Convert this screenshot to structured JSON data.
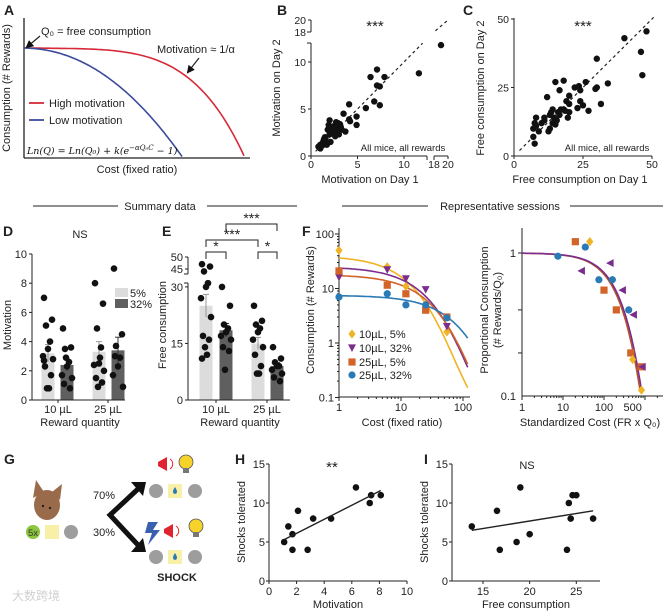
{
  "sections": {
    "summary": "Summary data",
    "representative": "Representative sessions"
  },
  "watermark": "大数跨境",
  "colors": {
    "high": "#d62a3a",
    "low": "#3d4b9c",
    "bar5": "#dcdcdc",
    "bar32": "#5f5f5f",
    "yellow": "#f0b323",
    "purple": "#7b2d8e",
    "orange": "#d2642a",
    "blue": "#2a7ab5",
    "green": "#8cc63f",
    "pad": "#f7f0a6",
    "grey": "#9d9d9d",
    "mouse": "#9a6b4b"
  },
  "chart_data": [
    {
      "panel": "A",
      "type": "line",
      "xlabel": "Cost (fixed ratio)",
      "ylabel": "Consumption (# Rewards)",
      "annotations": {
        "q0": "Q₀ = free consumption",
        "motivation": "Motivation ≈ 1/α"
      },
      "equation": {
        "main": "Ln(Q) = Ln(Q₀) + k(e",
        "sup": "−αQ₀C",
        "end": " − 1)"
      },
      "series": [
        {
          "name": "High motivation",
          "color": "#d62a3a"
        },
        {
          "name": "Low motivation",
          "color": "#3d4b9c"
        }
      ]
    },
    {
      "panel": "B",
      "type": "scatter",
      "xlabel": "Motivation on Day 1",
      "ylabel": "Motivation on Day 2",
      "significance": "***",
      "note": "All mice, all rewards",
      "xticks": [
        0,
        5,
        10,
        18,
        20
      ],
      "yticks": [
        0,
        5,
        10,
        18,
        20
      ],
      "axis_break": [
        12.5,
        18
      ],
      "identity_line": true,
      "points": [
        [
          0.8,
          1
        ],
        [
          1,
          1.2
        ],
        [
          1,
          0.8
        ],
        [
          1.2,
          1.1
        ],
        [
          1.3,
          1.5
        ],
        [
          1.4,
          1.8
        ],
        [
          1.5,
          1.3
        ],
        [
          1.5,
          2
        ],
        [
          1.6,
          1.6
        ],
        [
          1.7,
          1.2
        ],
        [
          1.8,
          2.8
        ],
        [
          1.9,
          3.3
        ],
        [
          2,
          3.8
        ],
        [
          2,
          2.3
        ],
        [
          2.1,
          1.5
        ],
        [
          2.2,
          2.5
        ],
        [
          2.4,
          3
        ],
        [
          2.5,
          3.2
        ],
        [
          2.5,
          2.6
        ],
        [
          2.6,
          2.1
        ],
        [
          2.7,
          3.6
        ],
        [
          2.8,
          2.9
        ],
        [
          2.9,
          3.5
        ],
        [
          3,
          2.8
        ],
        [
          3,
          2.3
        ],
        [
          3.1,
          3.4
        ],
        [
          3.2,
          3.1
        ],
        [
          3.3,
          2.8
        ],
        [
          3.5,
          4.5
        ],
        [
          3.7,
          2.6
        ],
        [
          4.1,
          5.5
        ],
        [
          4.1,
          3.9
        ],
        [
          4.2,
          3.7
        ],
        [
          4.9,
          4.2
        ],
        [
          4.9,
          3.3
        ],
        [
          5.9,
          5.1
        ],
        [
          6.4,
          8.4
        ],
        [
          6.8,
          5.8
        ],
        [
          7.1,
          9.2
        ],
        [
          7.1,
          7.5
        ],
        [
          7.4,
          7.4
        ],
        [
          7.4,
          5.4
        ],
        [
          7.9,
          8.4
        ],
        [
          11.6,
          8.8
        ],
        [
          19,
          11.8
        ]
      ]
    },
    {
      "panel": "C",
      "type": "scatter",
      "xlabel": "Free consumption on Day 1",
      "ylabel": "Free consumption on Day 2",
      "significance": "***",
      "note": "All mice, all rewards",
      "xticks": [
        0,
        25,
        50
      ],
      "yticks": [
        0,
        25,
        50
      ],
      "xlim": [
        0,
        50
      ],
      "ylim": [
        0,
        50
      ],
      "identity_line": true,
      "points": [
        [
          7,
          10
        ],
        [
          7,
          7
        ],
        [
          7.5,
          4.5
        ],
        [
          7.5,
          12
        ],
        [
          8,
          11
        ],
        [
          8,
          14
        ],
        [
          9,
          9
        ],
        [
          10,
          12
        ],
        [
          11,
          13
        ],
        [
          11,
          14
        ],
        [
          12,
          21.5
        ],
        [
          12.5,
          9
        ],
        [
          13,
          10
        ],
        [
          13,
          15
        ],
        [
          13.5,
          16
        ],
        [
          14,
          17
        ],
        [
          14,
          12
        ],
        [
          14.5,
          14
        ],
        [
          15,
          11.5
        ],
        [
          15,
          27
        ],
        [
          15.5,
          13
        ],
        [
          16,
          16
        ],
        [
          16.5,
          24
        ],
        [
          16.5,
          15
        ],
        [
          17,
          17
        ],
        [
          18,
          27.5
        ],
        [
          18,
          17
        ],
        [
          18.5,
          16.5
        ],
        [
          19,
          20
        ],
        [
          19.5,
          14
        ],
        [
          20,
          22
        ],
        [
          20,
          16
        ],
        [
          20,
          19
        ],
        [
          22,
          25
        ],
        [
          23,
          17.5
        ],
        [
          23.5,
          25.5
        ],
        [
          24,
          20
        ],
        [
          24,
          24
        ],
        [
          25,
          18.5
        ],
        [
          26,
          27
        ],
        [
          27,
          16.5
        ],
        [
          29.5,
          24.5
        ],
        [
          30,
          25
        ],
        [
          30,
          35.5
        ],
        [
          31.5,
          19
        ],
        [
          34,
          26.5
        ],
        [
          40,
          43
        ],
        [
          46,
          38
        ],
        [
          46.5,
          29.5
        ],
        [
          48,
          45.5
        ]
      ]
    },
    {
      "panel": "D",
      "type": "bar",
      "title": "NS",
      "xlabel": "Reward quantity",
      "ylabel": "Motivation",
      "categories": [
        "10 µL",
        "25 µL"
      ],
      "legend": [
        "5%",
        "32%"
      ],
      "yticks": [
        0,
        2,
        4,
        6,
        8,
        10
      ],
      "ylim": [
        0,
        10
      ],
      "series": [
        {
          "name": "5%",
          "means": [
            3.2,
            3.3
          ],
          "sem": [
            0.6,
            0.7
          ],
          "points": [
            [
              7,
              5.5,
              5.1,
              4,
              3.5,
              3,
              2.8,
              2.3,
              1.7,
              0.8,
              0.8,
              2.7
            ],
            [
              8,
              6.6,
              4.9,
              3.6,
              2.5,
              2.4,
              2,
              1.5,
              1.2,
              0.9,
              2.9
            ]
          ]
        },
        {
          "name": "32%",
          "means": [
            2.4,
            3.4
          ],
          "sem": [
            0.4,
            0.9
          ],
          "points": [
            [
              4.9,
              3.6,
              3.5,
              2.6,
              2.3,
              1.7,
              1.5,
              1.1,
              0.8,
              2.9
            ],
            [
              9,
              4.5,
              3.7,
              2.9,
              2.3,
              1.7,
              0.9,
              3
            ]
          ]
        }
      ]
    },
    {
      "panel": "E",
      "type": "bar",
      "xlabel": "Reward quantity",
      "ylabel": "Free consumption",
      "categories": [
        "10 µL",
        "25 µL"
      ],
      "yticks": [
        0,
        15,
        30,
        45,
        50
      ],
      "axis_break": [
        31,
        44
      ],
      "series": [
        {
          "name": "5%",
          "means": [
            25,
            15
          ],
          "sem": [
            3,
            1.6
          ],
          "points": [
            [
              47,
              46,
              44,
              31,
              30,
              27,
              22,
              17,
              16,
              14,
              12,
              11
            ],
            [
              25,
              21,
              20,
              19,
              18,
              16,
              14,
              12,
              9,
              7,
              7
            ]
          ]
        },
        {
          "name": "32%",
          "means": [
            18.5,
            9
          ],
          "sem": [
            1.8,
            0.9
          ],
          "points": [
            [
              30,
              25,
              20,
              19,
              18,
              17,
              16,
              14,
              13,
              8
            ],
            [
              14,
              11,
              10,
              9,
              9,
              8,
              7,
              6,
              5
            ]
          ]
        }
      ],
      "significance": [
        {
          "label": "*",
          "between": [
            "10 µL 5%",
            "10 µL 32%"
          ]
        },
        {
          "label": "*",
          "between": [
            "25 µL 5%",
            "25 µL 32%"
          ]
        },
        {
          "label": "***",
          "between": [
            "10 µL 5%",
            "25 µL 5%"
          ]
        },
        {
          "label": "***",
          "between": [
            "10 µL 32%",
            "25 µL 32%"
          ]
        }
      ]
    },
    {
      "panel": "F",
      "type": "line",
      "xlabel": "Cost (fixed ratio)",
      "ylabel": "Consumption (# Rewards)",
      "xscale": "log",
      "yscale": "log",
      "xticks": [
        1,
        10,
        100
      ],
      "yticks": [
        100,
        10,
        1,
        0.1
      ],
      "xlim": [
        1,
        120
      ],
      "ylim": [
        0.1,
        120
      ],
      "legend_position": "bottom-left",
      "series": [
        {
          "name": "10µL, 5%",
          "marker": "diamond",
          "color": "#f0b323",
          "q0": 40,
          "alpha": 0.000346,
          "points": [
            [
              1,
              50
            ],
            [
              6,
              25
            ],
            [
              12,
              11
            ],
            [
              25,
              5
            ],
            [
              55,
              1.6
            ]
          ]
        },
        {
          "name": "10µL, 32%",
          "marker": "triangle-down",
          "color": "#7b2d8e",
          "q0": 25,
          "alpha": 0.00032,
          "points": [
            [
              1,
              16
            ],
            [
              6,
              22
            ],
            [
              12,
              15
            ],
            [
              25,
              9.5
            ],
            [
              55,
              2
            ]
          ]
        },
        {
          "name": "25µL, 5%",
          "marker": "square",
          "color": "#d2642a",
          "q0": 18,
          "alpha": 0.00037,
          "points": [
            [
              1,
              21
            ],
            [
              6,
              11.5
            ],
            [
              12,
              8
            ],
            [
              25,
              4
            ],
            [
              55,
              3
            ]
          ]
        },
        {
          "name": "25µL, 32%",
          "marker": "circle",
          "color": "#2a7ab5",
          "q0": 7.5,
          "alpha": 0.00034,
          "points": [
            [
              1,
              7
            ],
            [
              6,
              8
            ],
            [
              12,
              5
            ],
            [
              25,
              5
            ],
            [
              55,
              2.9
            ]
          ]
        }
      ]
    },
    {
      "panel": "F-right",
      "type": "line",
      "xlabel": "Standardized Cost (FR x Q₀)",
      "ylabel": [
        "Proportional Consumption",
        "(# Rewards/Q₀)"
      ],
      "xscale": "log",
      "yscale": "log",
      "xticks": [
        1,
        10,
        100,
        500
      ],
      "yticks": [
        1,
        0.1
      ],
      "xlim": [
        1,
        2500
      ],
      "ylim": [
        0.1,
        1.5
      ],
      "curves": [
        {
          "color": "#b5542a",
          "alpha": 0.00051
        },
        {
          "color": "#7b2d8e",
          "alpha": 0.00047
        }
      ],
      "series": [
        {
          "marker": "square",
          "color": "#d2642a",
          "points": [
            [
              20,
              1.2
            ],
            [
              100,
              0.55
            ],
            [
              200,
              0.4
            ],
            [
              450,
              0.2
            ],
            [
              800,
              0.16
            ]
          ]
        },
        {
          "marker": "diamond",
          "color": "#f0b323",
          "points": [
            [
              45,
              1.2
            ],
            [
              500,
              0.18
            ],
            [
              820,
              0.11
            ]
          ]
        },
        {
          "marker": "triangle-left",
          "color": "#7b2d8e",
          "points": [
            [
              28,
              0.75
            ],
            [
              140,
              0.85
            ],
            [
              280,
              0.55
            ],
            [
              520,
              0.37
            ],
            [
              850,
              0.16
            ]
          ]
        },
        {
          "marker": "circle",
          "color": "#2a7ab5",
          "points": [
            [
              7.5,
              0.95
            ],
            [
              35,
              1.1
            ],
            [
              75,
              0.65
            ],
            [
              160,
              0.65
            ],
            [
              400,
              0.4
            ]
          ]
        }
      ]
    },
    {
      "panel": "G",
      "type": "diagram",
      "trials": "5x",
      "up_prob": "70%",
      "down_prob": "30%",
      "shock_label": "SHOCK"
    },
    {
      "panel": "H",
      "type": "scatter",
      "xlabel": "Motivation",
      "ylabel": "Shocks tolerated",
      "significance": "**",
      "xticks": [
        0,
        2,
        4,
        6,
        8,
        10
      ],
      "yticks": [
        0,
        5,
        10,
        15
      ],
      "xlim": [
        0,
        10
      ],
      "ylim": [
        0,
        15
      ],
      "points": [
        [
          1.1,
          5
        ],
        [
          1.4,
          7
        ],
        [
          1.7,
          6
        ],
        [
          1.7,
          4
        ],
        [
          2.1,
          9
        ],
        [
          2.8,
          4
        ],
        [
          3.2,
          8
        ],
        [
          4.5,
          8
        ],
        [
          6.3,
          12
        ],
        [
          7.3,
          10
        ],
        [
          7.4,
          11
        ],
        [
          8.1,
          11
        ]
      ],
      "fit": [
        [
          1.1,
          5.3
        ],
        [
          8.1,
          11.6
        ]
      ]
    },
    {
      "panel": "I",
      "type": "scatter",
      "xlabel": "Free consumption",
      "ylabel": "Shocks tolerated",
      "significance": "NS",
      "xticks": [
        15,
        20,
        25
      ],
      "yticks": [
        0,
        5,
        10,
        15
      ],
      "xlim": [
        11.7,
        28
      ],
      "ylim": [
        0,
        15
      ],
      "points": [
        [
          13.8,
          7
        ],
        [
          16.5,
          9
        ],
        [
          16.8,
          4
        ],
        [
          18.6,
          5
        ],
        [
          19,
          12
        ],
        [
          20,
          6
        ],
        [
          24,
          4
        ],
        [
          24.2,
          10
        ],
        [
          24.4,
          8
        ],
        [
          24.6,
          11
        ],
        [
          25,
          11
        ],
        [
          26.8,
          8
        ]
      ],
      "fit": [
        [
          13.8,
          6.5
        ],
        [
          26.8,
          9
        ]
      ]
    }
  ]
}
